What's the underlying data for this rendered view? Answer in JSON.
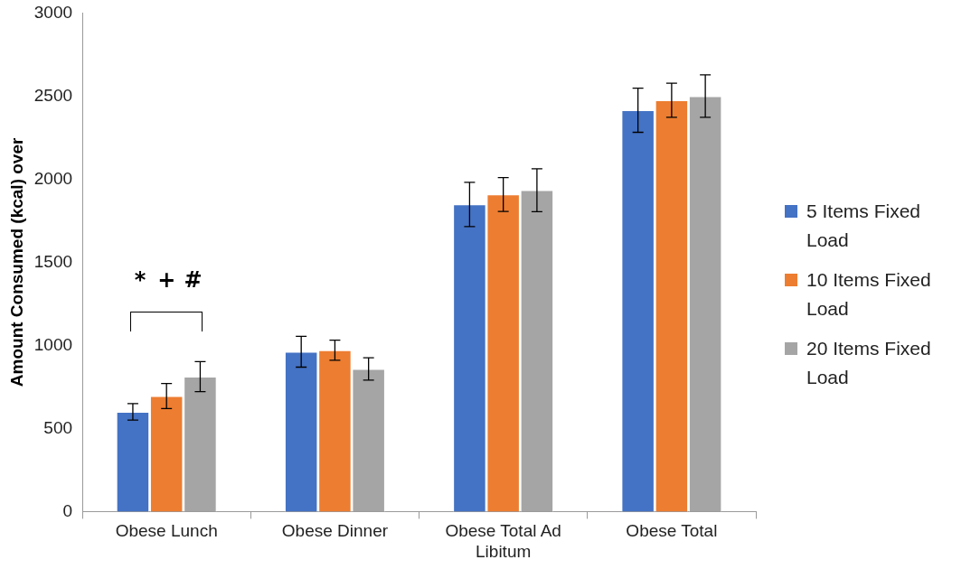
{
  "chart_data": {
    "type": "bar",
    "ylabel": "Amount Consumed (kcal) over",
    "categories": [
      "Obese Lunch",
      "Obese Dinner",
      "Obese Total Ad Libitum",
      "Obese Total"
    ],
    "series": [
      {
        "name": "5 Items Fixed Load",
        "color": "#4472c4",
        "values": [
          600,
          962,
          1848,
          2415
        ],
        "errors": [
          50,
          93,
          133,
          133
        ]
      },
      {
        "name": "10 Items Fixed Load",
        "color": "#ed7d31",
        "values": [
          695,
          971,
          1908,
          2475
        ],
        "errors": [
          75,
          60,
          102,
          103
        ]
      },
      {
        "name": "20 Items Fixed Load",
        "color": "#a5a5a5",
        "values": [
          812,
          858,
          1934,
          2500
        ],
        "errors": [
          90,
          67,
          129,
          128
        ]
      }
    ],
    "ylim": [
      0,
      3000
    ],
    "yticks": [
      0,
      500,
      1000,
      1500,
      2000,
      2500,
      3000
    ],
    "grid": false,
    "legend": "right",
    "annotations": [
      "*",
      "+",
      "#"
    ]
  }
}
